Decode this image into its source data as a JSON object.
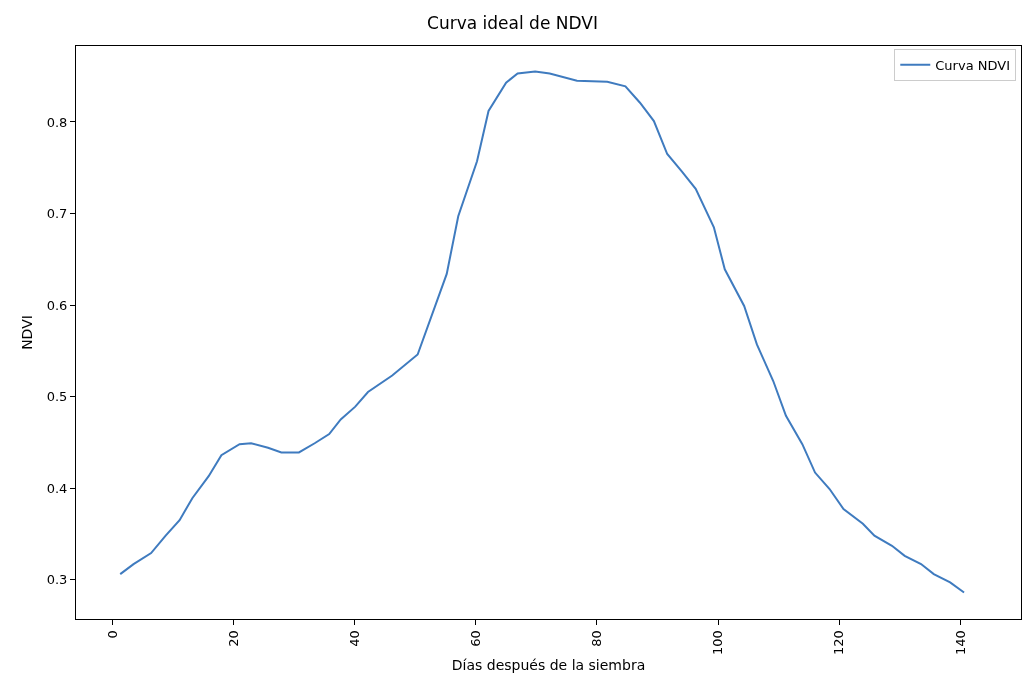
{
  "chart_data": {
    "type": "line",
    "title": "Curva ideal de NDVI",
    "xlabel": "Días después de la siembra",
    "ylabel": "NDVI",
    "xlim": [
      -6,
      150
    ],
    "xticks": [
      0,
      20,
      40,
      60,
      80,
      100,
      120,
      140
    ],
    "ylim": [
      0.257,
      0.883
    ],
    "yticks": [
      0.3,
      0.4,
      0.5,
      0.6,
      0.7,
      0.8
    ],
    "grid": false,
    "legend": "top right",
    "marker": "none",
    "line_style": "solid",
    "series": [
      {
        "name": "Curva NDVI",
        "color": "#3f7bbf",
        "x": [
          1.3,
          3.5,
          6.4,
          8.8,
          11.1,
          13.2,
          15.9,
          18.0,
          21.0,
          22.9,
          25.7,
          27.9,
          30.8,
          33.4,
          35.8,
          37.7,
          40.1,
          42.2,
          46.2,
          50.4,
          55.2,
          57.1,
          60.2,
          62.1,
          65.0,
          66.9,
          69.8,
          72.2,
          76.7,
          81.7,
          84.7,
          87.1,
          89.4,
          91.6,
          94.0,
          96.3,
          99.3,
          101.1,
          104.3,
          106.4,
          109.1,
          111.2,
          113.9,
          116.0,
          118.4,
          120.7,
          123.9,
          125.8,
          128.7,
          130.8,
          133.5,
          135.6,
          138.3,
          140.6
        ],
        "values": [
          0.306,
          0.317,
          0.329,
          0.348,
          0.365,
          0.389,
          0.413,
          0.436,
          0.448,
          0.449,
          0.444,
          0.439,
          0.439,
          0.449,
          0.459,
          0.475,
          0.489,
          0.505,
          0.523,
          0.546,
          0.634,
          0.697,
          0.757,
          0.812,
          0.843,
          0.853,
          0.855,
          0.853,
          0.845,
          0.844,
          0.839,
          0.821,
          0.801,
          0.765,
          0.746,
          0.727,
          0.685,
          0.639,
          0.599,
          0.557,
          0.517,
          0.479,
          0.448,
          0.417,
          0.399,
          0.377,
          0.361,
          0.348,
          0.337,
          0.326,
          0.317,
          0.306,
          0.297,
          0.286
        ]
      }
    ]
  }
}
